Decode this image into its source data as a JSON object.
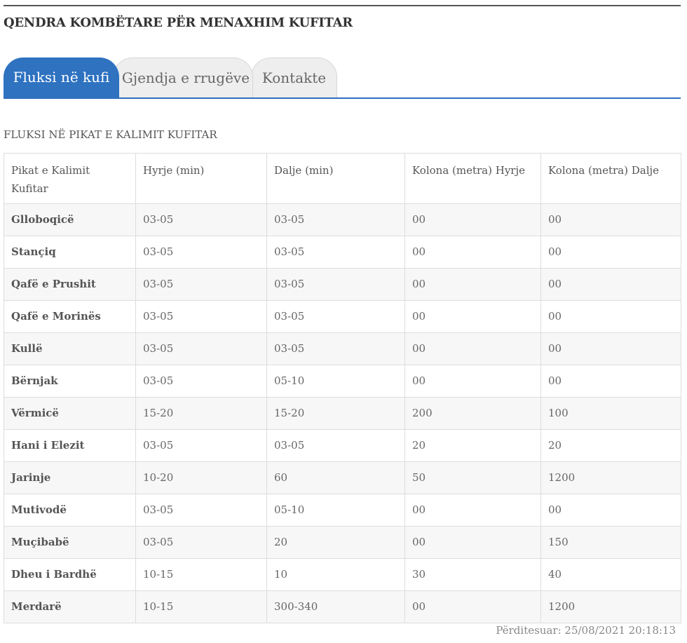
{
  "site": {
    "title": "QENDRA KOMBËTARE PËR MENAXHIM KUFITAR"
  },
  "tabs": [
    {
      "label": "Fluksi në kufi"
    },
    {
      "label": "Gjendja e rrugëve"
    },
    {
      "label": "Kontakte"
    }
  ],
  "section": {
    "heading": "FLUKSI NË PIKAT E KALIMIT KUFITAR"
  },
  "table": {
    "headers": [
      "Pikat e Kalimit Kufitar",
      "Hyrje (min)",
      "Dalje (min)",
      "Kolona (metra) Hyrje",
      "Kolona (metra) Dalje"
    ],
    "rows": [
      [
        "Glloboqicë",
        "03-05",
        "03-05",
        "00",
        "00"
      ],
      [
        "Stançiq",
        "03-05",
        "03-05",
        "00",
        "00"
      ],
      [
        "Qafë e Prushit",
        "03-05",
        "03-05",
        "00",
        "00"
      ],
      [
        "Qafë e Morinës",
        "03-05",
        "03-05",
        "00",
        "00"
      ],
      [
        "Kullë",
        "03-05",
        "03-05",
        "00",
        "00"
      ],
      [
        "Bërnjak",
        "03-05",
        "05-10",
        "00",
        "00"
      ],
      [
        "Vërmicë",
        "15-20",
        "15-20",
        "200",
        "100"
      ],
      [
        "Hani i Elezit",
        "03-05",
        "03-05",
        "20",
        "20"
      ],
      [
        "Jarinje",
        "10-20",
        "60",
        "50",
        "1200"
      ],
      [
        "Mutivodë",
        "03-05",
        "05-10",
        "00",
        "00"
      ],
      [
        "Muçibabë",
        "03-05",
        "20",
        "00",
        "150"
      ],
      [
        "Dheu i Bardhë",
        "10-15",
        "10",
        "30",
        "40"
      ],
      [
        "Merdarë",
        "10-15",
        "300-340",
        "00",
        "1200"
      ]
    ]
  },
  "footer": {
    "updated": "Përditesuar: 25/08/2021 20:18:13"
  },
  "colors": {
    "accent": "#2e72c0",
    "tab_inactive": "#eeeeee",
    "row_alt": "#f7f7f7",
    "border": "#dddddd"
  }
}
